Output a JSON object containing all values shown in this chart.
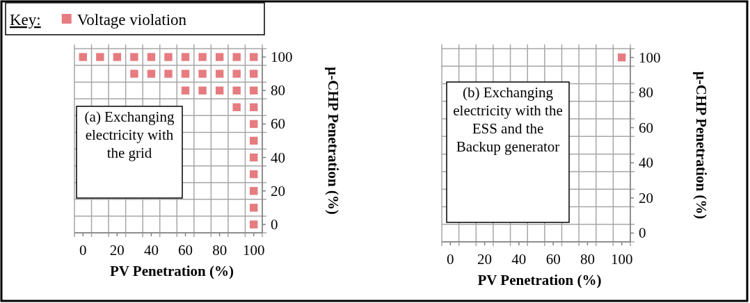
{
  "chart_data": [
    {
      "type": "scatter",
      "legend": "top left",
      "legend_title": "Key:",
      "marker": "square",
      "grid": true,
      "xlabel": "PV Penetration (%)",
      "ylabel": "µ-CHP Penetration (%)",
      "annotations": [
        "(a) Exchanging electricity with the grid"
      ],
      "xlim": [
        -5,
        105
      ],
      "ylim": [
        -5,
        105
      ],
      "xticks": [
        {
          "value": -5,
          "label": null
        },
        0,
        {
          "value": 5,
          "label": null
        },
        {
          "value": 15,
          "label": null
        },
        20,
        {
          "value": 25,
          "label": null
        },
        {
          "value": 35,
          "label": null
        },
        40,
        {
          "value": 45,
          "label": null
        },
        {
          "value": 55,
          "label": null
        },
        60,
        {
          "value": 65,
          "label": null
        },
        {
          "value": 75,
          "label": null
        },
        80,
        {
          "value": 85,
          "label": null
        },
        {
          "value": 95,
          "label": null
        },
        100,
        {
          "value": 105,
          "label": null
        }
      ],
      "yticks": [
        {
          "value": -5,
          "label": null
        },
        0,
        {
          "value": 5,
          "label": null
        },
        {
          "value": 15,
          "label": null
        },
        20,
        {
          "value": 25,
          "label": null
        },
        {
          "value": 35,
          "label": null
        },
        40,
        {
          "value": 45,
          "label": null
        },
        {
          "value": 55,
          "label": null
        },
        60,
        {
          "value": 65,
          "label": null
        },
        {
          "value": 75,
          "label": null
        },
        80,
        {
          "value": 85,
          "label": null
        },
        {
          "value": 95,
          "label": null
        },
        100,
        {
          "value": 105,
          "label": null
        }
      ],
      "series": [
        {
          "name": "Voltage violation",
          "color": "#e67c80",
          "x": [
            0,
            10,
            20,
            30,
            40,
            50,
            60,
            70,
            80,
            90,
            100,
            30,
            40,
            50,
            60,
            70,
            80,
            90,
            100,
            60,
            70,
            80,
            90,
            100,
            90,
            100,
            100,
            100,
            100,
            100,
            100,
            100,
            100
          ],
          "values": [
            100,
            100,
            100,
            100,
            100,
            100,
            100,
            100,
            100,
            100,
            100,
            90,
            90,
            90,
            90,
            90,
            90,
            90,
            90,
            80,
            80,
            80,
            80,
            80,
            70,
            70,
            60,
            50,
            40,
            30,
            20,
            10,
            0
          ]
        }
      ]
    },
    {
      "type": "scatter",
      "marker": "square",
      "grid": true,
      "xlabel": "PV Penetration (%)",
      "ylabel": "µ-CHP Penetration (%)",
      "annotations": [
        "(b) Exchanging electricity with the ESS and the Backup generator"
      ],
      "xlim": [
        -5,
        105
      ],
      "ylim": [
        -5,
        105
      ],
      "xticks": [
        {
          "value": -5,
          "label": null
        },
        0,
        {
          "value": 5,
          "label": null
        },
        {
          "value": 15,
          "label": null
        },
        20,
        {
          "value": 25,
          "label": null
        },
        {
          "value": 35,
          "label": null
        },
        40,
        {
          "value": 45,
          "label": null
        },
        {
          "value": 55,
          "label": null
        },
        60,
        {
          "value": 65,
          "label": null
        },
        {
          "value": 75,
          "label": null
        },
        80,
        {
          "value": 85,
          "label": null
        },
        {
          "value": 95,
          "label": null
        },
        100,
        {
          "value": 105,
          "label": null
        }
      ],
      "yticks": [
        {
          "value": -5,
          "label": null
        },
        0,
        {
          "value": 5,
          "label": null
        },
        {
          "value": 15,
          "label": null
        },
        20,
        {
          "value": 25,
          "label": null
        },
        {
          "value": 35,
          "label": null
        },
        40,
        {
          "value": 45,
          "label": null
        },
        {
          "value": 55,
          "label": null
        },
        60,
        {
          "value": 65,
          "label": null
        },
        {
          "value": 75,
          "label": null
        },
        80,
        {
          "value": 85,
          "label": null
        },
        {
          "value": 95,
          "label": null
        },
        100,
        {
          "value": 105,
          "label": null
        }
      ],
      "series": [
        {
          "color": "#e67c80",
          "x": [
            100
          ],
          "values": [
            100
          ]
        }
      ]
    }
  ]
}
